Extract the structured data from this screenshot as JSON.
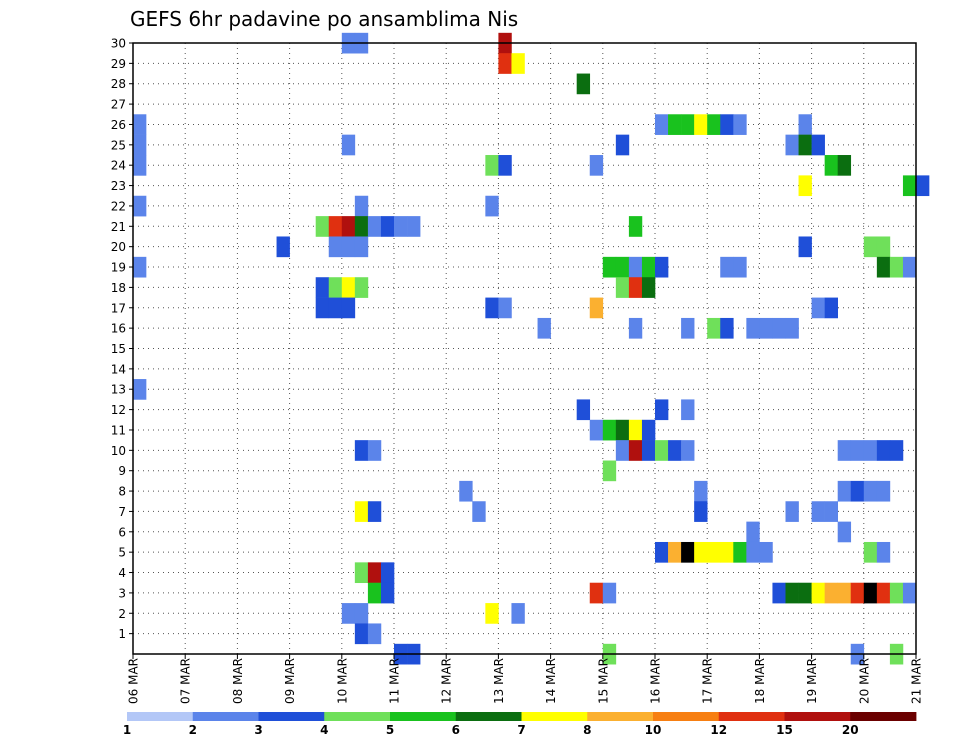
{
  "chart_data": {
    "type": "heatmap",
    "title": "GEFS 6hr padavine po ansamblima Nis",
    "xlabel": "",
    "ylabel": "",
    "x_tick_labels": [
      "06 MAR",
      "07 MAR",
      "08 MAR",
      "09 MAR",
      "10 MAR",
      "11 MAR",
      "12 MAR",
      "13 MAR",
      "14 MAR",
      "15 MAR",
      "16 MAR",
      "17 MAR",
      "18 MAR",
      "19 MAR",
      "20 MAR",
      "21 MAR"
    ],
    "x_range_days": [
      0,
      15
    ],
    "y_tick_labels": [
      "1",
      "2",
      "3",
      "4",
      "5",
      "6",
      "7",
      "8",
      "9",
      "10",
      "11",
      "12",
      "13",
      "14",
      "15",
      "16",
      "17",
      "18",
      "19",
      "20",
      "21",
      "22",
      "23",
      "24",
      "25",
      "26",
      "27",
      "28",
      "29",
      "30"
    ],
    "y_range": [
      0,
      30
    ],
    "grid": true,
    "legend": {
      "placement": "bottom",
      "labels": [
        "1",
        "2",
        "3",
        "4",
        "5",
        "6",
        "7",
        "8",
        "10",
        "12",
        "15",
        "20"
      ],
      "colors": [
        "#b3c7f7",
        "#5b84ea",
        "#1f4fd8",
        "#6fe05a",
        "#19c21e",
        "#0b6e10",
        "#ffff00",
        "#fbb030",
        "#f77f12",
        "#e03010",
        "#b0100e",
        "#6b0000"
      ]
    },
    "cell_width_days": 0.25,
    "cells": [
      [
        4.0,
        30,
        1
      ],
      [
        4.25,
        30,
        1
      ],
      [
        7.0,
        30,
        10
      ],
      [
        7.0,
        29,
        9
      ],
      [
        7.25,
        29,
        6
      ],
      [
        8.5,
        28,
        5
      ],
      [
        0.0,
        26,
        1
      ],
      [
        10.0,
        26,
        1
      ],
      [
        10.25,
        26,
        4
      ],
      [
        10.5,
        26,
        4
      ],
      [
        10.75,
        26,
        6
      ],
      [
        11.0,
        26,
        4
      ],
      [
        11.25,
        26,
        2
      ],
      [
        11.5,
        26,
        1
      ],
      [
        12.75,
        26,
        1
      ],
      [
        0.0,
        25,
        1
      ],
      [
        4.0,
        25,
        1
      ],
      [
        9.25,
        25,
        2
      ],
      [
        12.5,
        25,
        1
      ],
      [
        12.75,
        25,
        5
      ],
      [
        13.0,
        25,
        2
      ],
      [
        0.0,
        24,
        1
      ],
      [
        6.75,
        24,
        3
      ],
      [
        7.0,
        24,
        2
      ],
      [
        8.75,
        24,
        1
      ],
      [
        13.25,
        24,
        4
      ],
      [
        13.5,
        24,
        5
      ],
      [
        12.75,
        23,
        6
      ],
      [
        14.75,
        23,
        4
      ],
      [
        15.0,
        23,
        2
      ],
      [
        0.0,
        22,
        1
      ],
      [
        4.25,
        22,
        1
      ],
      [
        6.75,
        22,
        1
      ],
      [
        3.5,
        21,
        3
      ],
      [
        3.75,
        21,
        9
      ],
      [
        4.0,
        21,
        10
      ],
      [
        4.25,
        21,
        5
      ],
      [
        4.5,
        21,
        1
      ],
      [
        4.75,
        21,
        2
      ],
      [
        5.0,
        21,
        1
      ],
      [
        5.25,
        21,
        1
      ],
      [
        9.5,
        21,
        4
      ],
      [
        2.75,
        20,
        2
      ],
      [
        3.75,
        20,
        1
      ],
      [
        4.0,
        20,
        1
      ],
      [
        4.25,
        20,
        1
      ],
      [
        12.75,
        20,
        2
      ],
      [
        14.0,
        20,
        3
      ],
      [
        14.25,
        20,
        3
      ],
      [
        0.0,
        19,
        1
      ],
      [
        9.0,
        19,
        4
      ],
      [
        9.25,
        19,
        4
      ],
      [
        9.5,
        19,
        1
      ],
      [
        9.75,
        19,
        4
      ],
      [
        10.0,
        19,
        2
      ],
      [
        11.25,
        19,
        1
      ],
      [
        11.5,
        19,
        1
      ],
      [
        14.25,
        19,
        5
      ],
      [
        14.5,
        19,
        3
      ],
      [
        14.75,
        19,
        1
      ],
      [
        3.5,
        18,
        2
      ],
      [
        3.75,
        18,
        3
      ],
      [
        4.0,
        18,
        6
      ],
      [
        4.25,
        18,
        3
      ],
      [
        9.25,
        18,
        3
      ],
      [
        9.5,
        18,
        9
      ],
      [
        9.75,
        18,
        5
      ],
      [
        3.5,
        17,
        2
      ],
      [
        3.75,
        17,
        2
      ],
      [
        4.0,
        17,
        2
      ],
      [
        6.75,
        17,
        2
      ],
      [
        7.0,
        17,
        1
      ],
      [
        8.75,
        17,
        7
      ],
      [
        13.0,
        17,
        1
      ],
      [
        13.25,
        17,
        2
      ],
      [
        7.75,
        16,
        1
      ],
      [
        9.5,
        16,
        1
      ],
      [
        10.5,
        16,
        1
      ],
      [
        11.0,
        16,
        3
      ],
      [
        11.25,
        16,
        2
      ],
      [
        11.75,
        16,
        1
      ],
      [
        12.0,
        16,
        1
      ],
      [
        12.25,
        16,
        1
      ],
      [
        12.5,
        16,
        1
      ],
      [
        0.0,
        13,
        1
      ],
      [
        8.5,
        12,
        2
      ],
      [
        10.0,
        12,
        2
      ],
      [
        10.5,
        12,
        1
      ],
      [
        8.75,
        11,
        1
      ],
      [
        9.0,
        11,
        4
      ],
      [
        9.25,
        11,
        5
      ],
      [
        9.5,
        11,
        6
      ],
      [
        9.75,
        11,
        2
      ],
      [
        4.25,
        10,
        2
      ],
      [
        4.5,
        10,
        1
      ],
      [
        9.25,
        10,
        1
      ],
      [
        9.5,
        10,
        10
      ],
      [
        9.75,
        10,
        2
      ],
      [
        10.0,
        10,
        3
      ],
      [
        10.25,
        10,
        2
      ],
      [
        10.5,
        10,
        1
      ],
      [
        13.5,
        10,
        1
      ],
      [
        13.75,
        10,
        1
      ],
      [
        14.0,
        10,
        1
      ],
      [
        14.25,
        10,
        2
      ],
      [
        14.5,
        10,
        2
      ],
      [
        9.0,
        9,
        3
      ],
      [
        6.25,
        8,
        1
      ],
      [
        10.75,
        8,
        1
      ],
      [
        13.5,
        8,
        1
      ],
      [
        13.75,
        8,
        2
      ],
      [
        14.0,
        8,
        1
      ],
      [
        14.25,
        8,
        1
      ],
      [
        4.25,
        7,
        6
      ],
      [
        4.5,
        7,
        2
      ],
      [
        6.5,
        7,
        1
      ],
      [
        10.75,
        7,
        2
      ],
      [
        12.5,
        7,
        1
      ],
      [
        13.0,
        7,
        1
      ],
      [
        13.25,
        7,
        1
      ],
      [
        11.75,
        6,
        1
      ],
      [
        13.5,
        6,
        1
      ],
      [
        10.0,
        5,
        2
      ],
      [
        10.25,
        5,
        7
      ],
      [
        10.5,
        5,
        12
      ],
      [
        10.75,
        5,
        6
      ],
      [
        11.0,
        5,
        6
      ],
      [
        11.25,
        5,
        6
      ],
      [
        11.5,
        5,
        4
      ],
      [
        11.75,
        5,
        1
      ],
      [
        12.0,
        5,
        1
      ],
      [
        14.0,
        5,
        3
      ],
      [
        14.25,
        5,
        1
      ],
      [
        4.25,
        4,
        3
      ],
      [
        4.5,
        4,
        10
      ],
      [
        4.75,
        4,
        2
      ],
      [
        4.5,
        3,
        4
      ],
      [
        4.75,
        3,
        2
      ],
      [
        8.75,
        3,
        9
      ],
      [
        9.0,
        3,
        1
      ],
      [
        12.25,
        3,
        2
      ],
      [
        12.5,
        3,
        5
      ],
      [
        12.75,
        3,
        5
      ],
      [
        13.0,
        3,
        6
      ],
      [
        13.25,
        3,
        7
      ],
      [
        13.5,
        3,
        7
      ],
      [
        13.75,
        3,
        9
      ],
      [
        14.0,
        3,
        14
      ],
      [
        14.25,
        3,
        9
      ],
      [
        14.5,
        3,
        3
      ],
      [
        14.75,
        3,
        1
      ],
      [
        4.0,
        2,
        1
      ],
      [
        4.25,
        2,
        1
      ],
      [
        6.75,
        2,
        6
      ],
      [
        7.25,
        2,
        1
      ],
      [
        4.25,
        1,
        2
      ],
      [
        4.5,
        1,
        1
      ],
      [
        5.0,
        0,
        2
      ],
      [
        5.25,
        0,
        2
      ],
      [
        9.0,
        0,
        3
      ],
      [
        13.75,
        0,
        1
      ],
      [
        14.5,
        0,
        3
      ]
    ]
  }
}
